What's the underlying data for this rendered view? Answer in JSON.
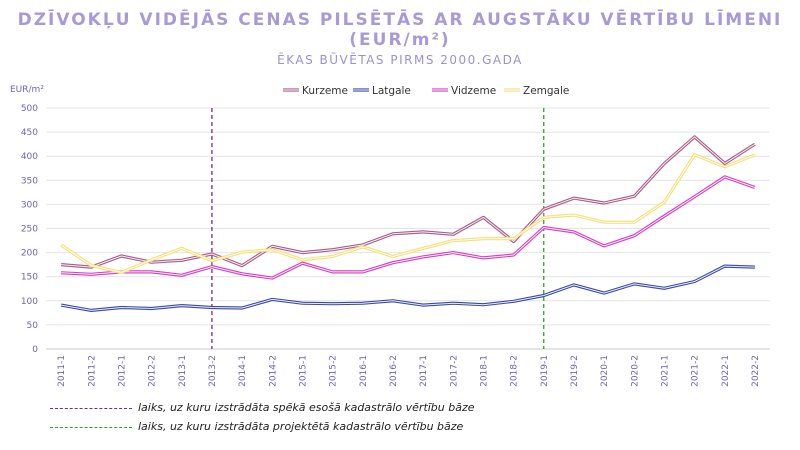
{
  "chart_data": {
    "type": "line",
    "title": "DZĪVOKĻU VIDĒJĀS CENAS PILSĒTĀS AR AUGSTĀKU VĒRTĪBU LĪMENI (EUR/m²)",
    "subtitle": "ĒKAS BŪVĒTAS PIRMS 2000.GADA",
    "ylabel": "EUR/m²",
    "ylim": [
      0,
      500
    ],
    "yticks": [
      0,
      50,
      100,
      150,
      200,
      250,
      300,
      350,
      400,
      450,
      500
    ],
    "categories": [
      "2011-1",
      "2011-2",
      "2012-1",
      "2012-2",
      "2013-1",
      "2013-2",
      "2014-1",
      "2014-2",
      "2015-1",
      "2015-2",
      "2016-1",
      "2016-2",
      "2017-1",
      "2017-2",
      "2018-1",
      "2018-2",
      "2019-1",
      "2019-2",
      "2020-1",
      "2020-2",
      "2021-1",
      "2021-2",
      "2022-1",
      "2022-2"
    ],
    "series": [
      {
        "name": "Kurzeme",
        "color": "#a85a8a",
        "values": [
          175,
          170,
          193,
          180,
          184,
          197,
          173,
          213,
          200,
          206,
          216,
          239,
          243,
          238,
          273,
          223,
          290,
          313,
          303,
          317,
          385,
          440,
          385,
          425
        ]
      },
      {
        "name": "Latgale",
        "color": "#3a4aa8",
        "values": [
          91,
          80,
          86,
          84,
          90,
          86,
          85,
          103,
          95,
          94,
          95,
          100,
          91,
          95,
          92,
          99,
          111,
          133,
          116,
          135,
          126,
          140,
          172,
          170
        ]
      },
      {
        "name": "Vidzeme",
        "color": "#d43fc0",
        "values": [
          158,
          155,
          160,
          160,
          153,
          171,
          156,
          147,
          178,
          160,
          160,
          179,
          191,
          200,
          189,
          195,
          252,
          243,
          214,
          235,
          276,
          316,
          357,
          335
        ]
      },
      {
        "name": "Zemgale",
        "color": "#f5e07a",
        "values": [
          216,
          173,
          159,
          185,
          209,
          183,
          201,
          206,
          185,
          192,
          212,
          192,
          209,
          225,
          229,
          229,
          273,
          278,
          263,
          263,
          305,
          403,
          378,
          403
        ]
      }
    ],
    "vlines": [
      {
        "at": "2013-2",
        "color": "#7a2a7a",
        "label": "laiks, uz kuru izstrādāta spēkā esošā kadastrālo vērtību bāze"
      },
      {
        "at": "2019-1",
        "color": "#2aa02a",
        "label": "laiks, uz kuru izstrādāta projektētā kadastrālo vērtību bāze"
      }
    ]
  }
}
